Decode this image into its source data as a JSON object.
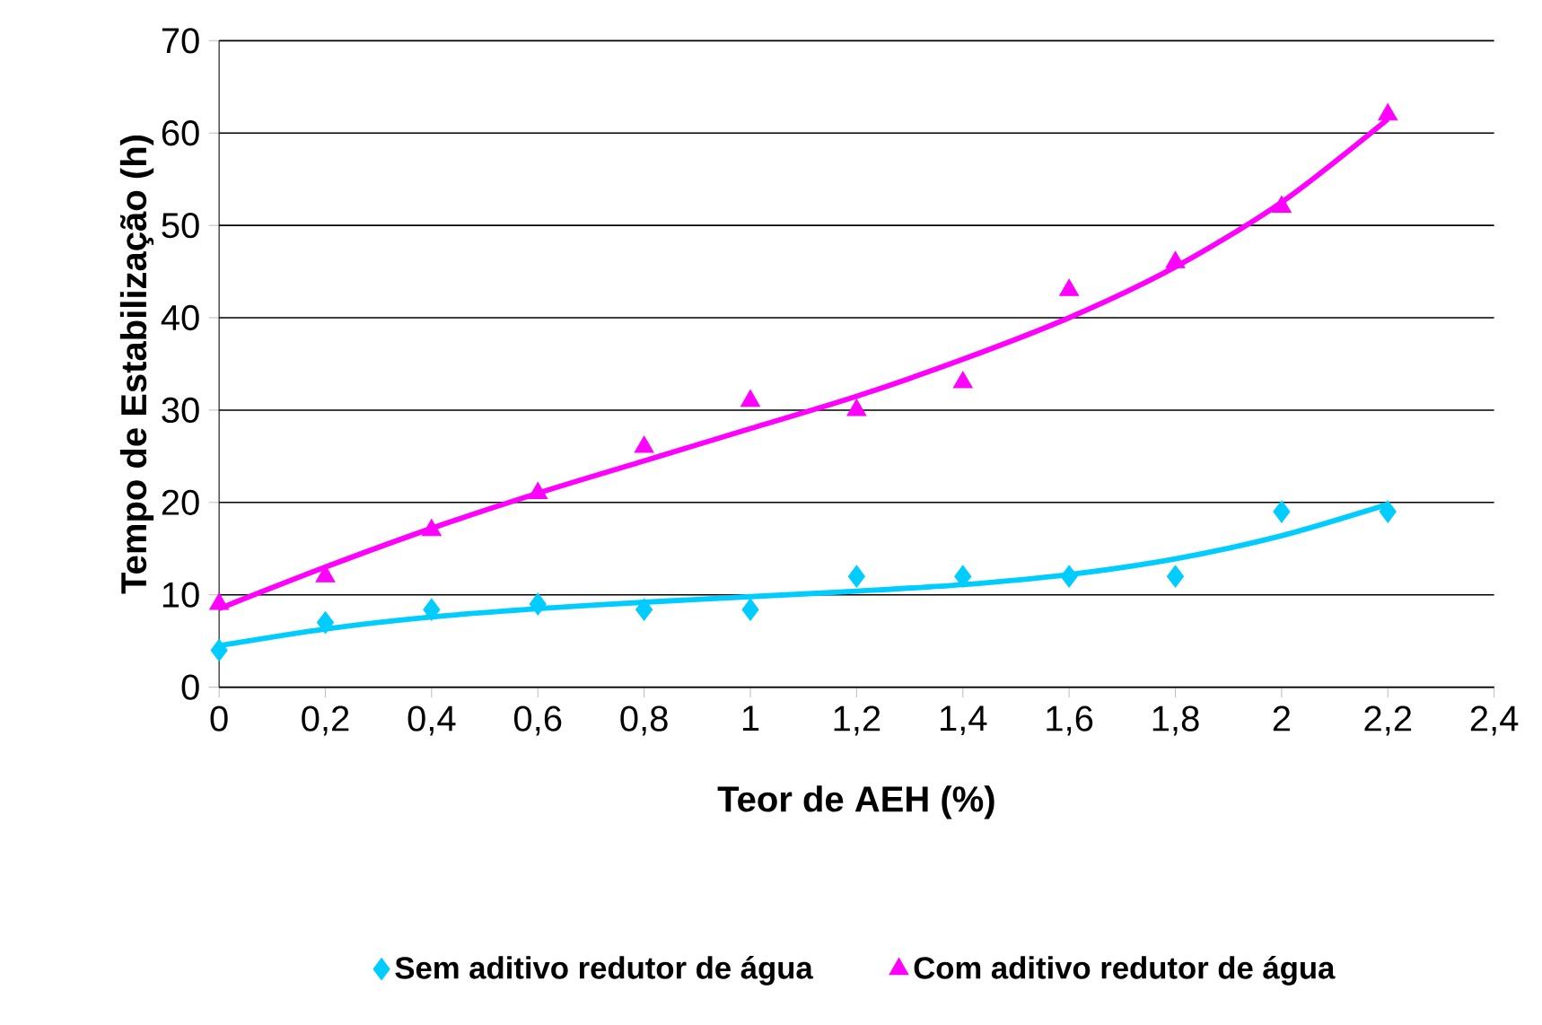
{
  "chart_data": {
    "type": "scatter",
    "xlabel": "Teor de AEH (%)",
    "ylabel": "Tempo de Estabilização (h)",
    "series": [
      {
        "name": "Sem aditivo redutor de água",
        "color": "#00ccff",
        "marker": "diamond",
        "x": [
          0,
          0.2,
          0.4,
          0.6,
          0.8,
          1.0,
          1.2,
          1.4,
          1.6,
          1.8,
          2.0,
          2.2
        ],
        "values": [
          4,
          7,
          8.4,
          9,
          8.4,
          8.4,
          12,
          12,
          12,
          12,
          19,
          19
        ]
      },
      {
        "name": "Com aditivo redutor de água",
        "color": "#ff00ff",
        "marker": "triangle",
        "x": [
          0,
          0.2,
          0.4,
          0.6,
          0.8,
          1.0,
          1.2,
          1.4,
          1.6,
          1.8,
          2.0,
          2.2
        ],
        "values": [
          9,
          12,
          17,
          21,
          26,
          31,
          30,
          33,
          43,
          46,
          52,
          62
        ]
      },
      {
        "type": "line",
        "color": "#00ccff",
        "marker": "none",
        "x": [
          0,
          0.2,
          0.4,
          0.6,
          0.8,
          1.0,
          1.2,
          1.4,
          1.6,
          1.8,
          2.0,
          2.2
        ],
        "values": [
          4.5,
          6.3,
          7.6,
          8.5,
          9.2,
          9.8,
          10.4,
          11.1,
          12.2,
          13.9,
          16.4,
          19.8
        ]
      },
      {
        "type": "line",
        "color": "#ff00ff",
        "marker": "none",
        "x": [
          0,
          0.2,
          0.4,
          0.6,
          0.8,
          1.0,
          1.2,
          1.4,
          1.6,
          1.8,
          2.0,
          2.2
        ],
        "values": [
          8.5,
          13,
          17.2,
          21,
          24.5,
          28,
          31.5,
          35.5,
          40,
          45.5,
          52.5,
          61.5
        ]
      }
    ],
    "xlim": [
      0,
      2.4
    ],
    "ylim": [
      0,
      70
    ],
    "xticks": [
      0,
      {
        "value": 0.2,
        "label": "0,2"
      },
      {
        "value": 0.4,
        "label": "0,4"
      },
      {
        "value": 0.6,
        "label": "0,6"
      },
      {
        "value": 0.8,
        "label": "0,8"
      },
      1,
      {
        "value": 1.2,
        "label": "1,2"
      },
      {
        "value": 1.4,
        "label": "1,4"
      },
      {
        "value": 1.6,
        "label": "1,6"
      },
      {
        "value": 1.8,
        "label": "1,8"
      },
      2,
      {
        "value": 2.2,
        "label": "2,2"
      },
      {
        "value": 2.4,
        "label": "2,4"
      }
    ],
    "yticks": [
      0,
      10,
      20,
      30,
      40,
      50,
      60,
      70
    ],
    "grid": "y",
    "legend": "bottom"
  }
}
